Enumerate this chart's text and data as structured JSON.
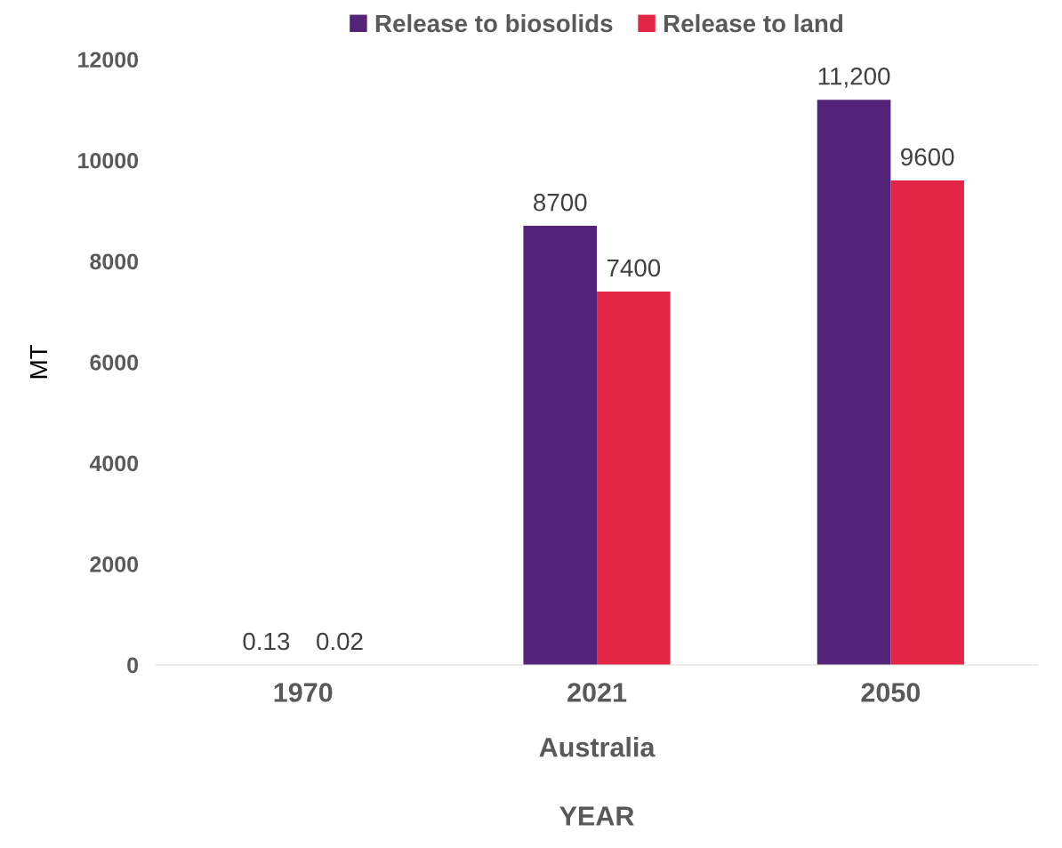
{
  "chart_data": {
    "type": "bar",
    "categories": [
      "1970",
      "2021",
      "2050"
    ],
    "series": [
      {
        "name": "Release to biosolids",
        "color": "#522376",
        "values": [
          0.13,
          8700,
          11200
        ],
        "value_labels": [
          "0.13",
          "8700",
          "11,200"
        ]
      },
      {
        "name": "Release to land",
        "color": "#e32645",
        "values": [
          0.02,
          7400,
          9600
        ],
        "value_labels": [
          "0.02",
          "7400",
          "9600"
        ]
      }
    ],
    "xlabel": "YEAR",
    "ylabel": "MT",
    "annotations": [
      "Australia"
    ],
    "ylim": [
      0,
      12000
    ],
    "yticks": [
      0,
      2000,
      4000,
      6000,
      8000,
      10000,
      12000
    ],
    "grid": false,
    "legend": "top"
  }
}
